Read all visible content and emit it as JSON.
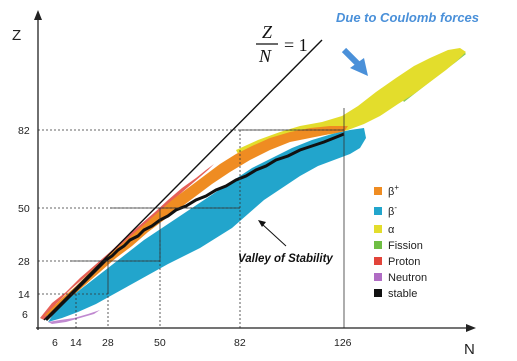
{
  "axes": {
    "x_label": "N",
    "y_label": "Z",
    "x_ticks": [
      "6",
      "14",
      "28",
      "50",
      "82",
      "126"
    ],
    "y_ticks": [
      "6",
      "14",
      "28",
      "50",
      "82"
    ]
  },
  "formula": {
    "numerator": "Z",
    "denominator": "N",
    "equals": "= 1"
  },
  "annotations": {
    "coulomb": "Due to Coulomb forces",
    "valley": "Valley of Stability"
  },
  "legend": [
    {
      "label": "β+",
      "color": "#ef8c22"
    },
    {
      "label": "β-",
      "color": "#22a5cc"
    },
    {
      "label": "α",
      "color": "#e3dd2c"
    },
    {
      "label": "Fission",
      "color": "#6fbe44"
    },
    {
      "label": "Proton",
      "color": "#e2443a"
    },
    {
      "label": "Neutron",
      "color": "#b06cc4"
    },
    {
      "label": "stable",
      "color": "#111111"
    }
  ],
  "colors": {
    "beta_plus": "#ef8c22",
    "beta_minus": "#22a5cc",
    "alpha": "#e3dd2c",
    "fission": "#6fbe44",
    "proton": "#e2443a",
    "neutron": "#b06cc4",
    "stable": "#111111",
    "arrow": "#4a90d9"
  }
}
